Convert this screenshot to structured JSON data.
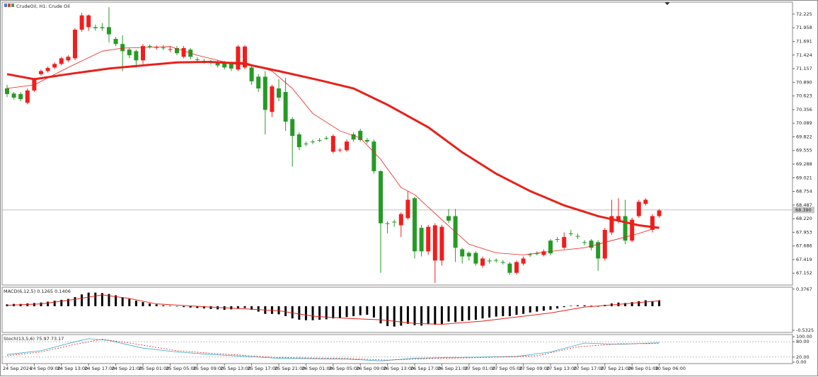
{
  "chart_data": [
    {
      "type": "candlestick",
      "title": "CrudeOil, H1:  Crude Oil",
      "categories": [
        "24 Sep 2024",
        null,
        null,
        null,
        "24 Sep 09:00",
        null,
        null,
        null,
        "24 Sep 13:00",
        null,
        null,
        null,
        "24 Sep 17:00",
        null,
        null,
        null,
        "24 Sep 21:00",
        null,
        null,
        null,
        "25 Sep 01:00",
        null,
        null,
        null,
        "25 Sep 05:00",
        null,
        null,
        null,
        "25 Sep 09:00",
        null,
        null,
        null,
        "25 Sep 13:00",
        null,
        null,
        null,
        "25 Sep 17:00",
        null,
        null,
        null,
        "25 Sep 21:00",
        null,
        null,
        null,
        "26 Sep 01:00",
        null,
        null,
        null,
        "26 Sep 05:00",
        null,
        null,
        null,
        "26 Sep 09:00",
        null,
        null,
        null,
        "26 Sep 13:00",
        null,
        null,
        null,
        "26 Sep 17:00",
        null,
        null,
        null,
        "26 Sep 21:00",
        null,
        null,
        null,
        "27 Sep 01:00",
        null,
        null,
        null,
        "27 Sep 05:00",
        null,
        null,
        null,
        "27 Sep 09:00",
        null,
        null,
        null,
        "27 Sep 13:00",
        null,
        null,
        null,
        "27 Sep 17:00",
        null,
        null,
        null,
        "27 Sep 21:00",
        null,
        null,
        null,
        "28 Sep 01:00",
        null,
        null,
        null,
        "30 Sep 06:00"
      ],
      "open": [
        70.77,
        70.67,
        70.66,
        70.49,
        70.73,
        71.05,
        71.11,
        71.18,
        71.25,
        71.32,
        71.36,
        71.92,
        71.97,
        71.97,
        71.97,
        71.97,
        71.74,
        71.64,
        71.53,
        71.5,
        71.32,
        71.6,
        71.57,
        71.57,
        71.53,
        71.56,
        71.39,
        71.53,
        71.34,
        71.31,
        71.29,
        71.29,
        71.28,
        71.25,
        71.14,
        71.18,
        71.18,
        71.0,
        71.0,
        70.31,
        70.77,
        70.7,
        70.17,
        69.87,
        69.69,
        69.73,
        69.76,
        69.8,
        69.53,
        69.56,
        69.56,
        69.87,
        69.94,
        69.76,
        69.73,
        69.15,
        68.13,
        68.16,
        68.09,
        68.23,
        68.62,
        68.04,
        67.58,
        67.4,
        67.4,
        68.27,
        68.27,
        67.62,
        67.55,
        67.55,
        67.3,
        67.4,
        67.41,
        67.37,
        67.34,
        67.16,
        67.34,
        67.52,
        67.54,
        67.51,
        67.79,
        67.82,
        67.65,
        67.93,
        67.88,
        67.76,
        67.79,
        67.76,
        67.44,
        67.95,
        68.18,
        68.27,
        67.79,
        68.27,
        68.51,
        68.0,
        68.27
      ],
      "high": [
        70.84,
        70.7,
        70.7,
        70.77,
        70.98,
        71.14,
        71.2,
        71.28,
        71.39,
        71.42,
        71.95,
        72.25,
        72.22,
        72.02,
        72.05,
        72.36,
        71.78,
        71.81,
        71.57,
        71.53,
        71.64,
        71.63,
        71.61,
        71.62,
        71.6,
        71.6,
        71.6,
        71.56,
        71.38,
        71.35,
        71.33,
        71.33,
        71.31,
        71.29,
        71.62,
        71.62,
        71.22,
        71.05,
        71.11,
        70.84,
        70.95,
        70.98,
        70.21,
        69.91,
        69.73,
        69.77,
        69.8,
        69.84,
        69.87,
        69.6,
        69.77,
        69.91,
        69.98,
        69.8,
        69.77,
        69.17,
        68.17,
        68.2,
        68.34,
        68.76,
        68.65,
        68.1,
        68.1,
        68.13,
        68.1,
        68.41,
        68.41,
        67.65,
        67.58,
        67.58,
        67.48,
        67.44,
        67.44,
        67.41,
        67.37,
        67.4,
        67.48,
        67.55,
        67.58,
        67.62,
        67.82,
        67.86,
        67.95,
        68.0,
        67.93,
        67.8,
        67.82,
        67.8,
        68.04,
        68.59,
        68.62,
        68.59,
        68.24,
        68.59,
        68.62,
        68.31,
        68.41
      ],
      "low": [
        70.6,
        70.55,
        70.52,
        70.46,
        70.7,
        71.02,
        71.08,
        71.15,
        71.22,
        71.29,
        71.32,
        71.88,
        71.9,
        71.9,
        71.9,
        71.67,
        71.6,
        71.11,
        71.36,
        71.18,
        71.25,
        71.55,
        71.53,
        71.52,
        71.48,
        71.42,
        71.36,
        71.34,
        71.28,
        71.25,
        71.24,
        71.18,
        71.14,
        71.11,
        71.11,
        71.14,
        70.84,
        70.7,
        69.87,
        70.21,
        70.52,
        69.94,
        69.24,
        69.56,
        69.64,
        69.68,
        69.72,
        69.76,
        69.5,
        69.52,
        69.53,
        69.73,
        69.73,
        69.69,
        69.1,
        67.16,
        67.93,
        68.06,
        67.86,
        68.2,
        67.44,
        67.48,
        67.51,
        66.96,
        67.3,
        68.13,
        67.37,
        67.34,
        67.4,
        67.3,
        67.26,
        67.34,
        67.36,
        67.32,
        67.12,
        67.13,
        67.3,
        67.47,
        67.5,
        67.48,
        67.5,
        67.76,
        67.62,
        67.88,
        67.82,
        67.7,
        67.6,
        67.2,
        67.4,
        67.9,
        68.13,
        67.72,
        67.76,
        68.24,
        68.48,
        67.95,
        68.24
      ],
      "close": [
        70.66,
        70.59,
        70.56,
        70.73,
        70.95,
        71.11,
        71.17,
        71.25,
        71.36,
        71.39,
        71.92,
        72.2,
        72.2,
        71.95,
        71.95,
        71.83,
        71.64,
        71.5,
        71.42,
        71.32,
        71.6,
        71.59,
        71.58,
        71.56,
        71.54,
        71.46,
        71.56,
        71.39,
        71.33,
        71.3,
        71.28,
        71.22,
        71.18,
        71.16,
        71.59,
        71.59,
        70.91,
        70.77,
        70.35,
        70.81,
        70.59,
        70.12,
        69.84,
        69.62,
        69.68,
        69.72,
        69.75,
        69.79,
        69.84,
        69.57,
        69.73,
        69.77,
        69.76,
        69.73,
        69.15,
        68.13,
        68.12,
        68.15,
        68.31,
        68.59,
        67.58,
        67.58,
        68.06,
        68.09,
        68.06,
        68.18,
        67.65,
        67.48,
        67.48,
        67.34,
        67.44,
        67.39,
        67.4,
        67.36,
        67.16,
        67.37,
        67.44,
        67.51,
        67.53,
        67.58,
        67.54,
        67.81,
        67.86,
        67.92,
        67.87,
        67.75,
        67.65,
        67.44,
        68.0,
        68.27,
        68.27,
        67.79,
        68.2,
        68.55,
        68.59,
        68.27,
        68.38
      ],
      "up_color": "#f21d1d",
      "down_color": "#259b25",
      "series": [
        {
          "color": "#e8201a",
          "width": 3,
          "x": [
            0,
            4,
            9,
            15,
            20,
            25,
            30,
            35,
            40,
            46,
            51,
            56,
            62,
            67,
            72,
            77,
            82,
            87,
            93,
            96
          ],
          "values": [
            71.05,
            70.95,
            71.05,
            71.16,
            71.22,
            71.28,
            71.29,
            71.25,
            71.11,
            70.93,
            70.77,
            70.45,
            70.01,
            69.52,
            69.1,
            68.76,
            68.48,
            68.27,
            68.09,
            68.04
          ]
        },
        {
          "color": "#e8201a",
          "width": 0.8,
          "x": [
            0,
            4,
            9,
            14,
            17,
            20,
            24,
            28,
            32,
            35,
            39,
            42,
            45,
            49,
            52,
            55,
            58,
            60,
            64,
            68,
            72,
            76,
            80,
            85,
            89,
            93,
            96
          ],
          "values": [
            70.77,
            70.84,
            71.18,
            71.5,
            71.56,
            71.57,
            71.59,
            71.42,
            71.29,
            71.28,
            71.11,
            70.77,
            70.28,
            69.94,
            69.8,
            69.38,
            68.83,
            68.69,
            68.2,
            67.72,
            67.55,
            67.51,
            67.58,
            67.65,
            67.79,
            67.93,
            68.06
          ]
        }
      ],
      "current_price": {
        "value": 68.39,
        "label": "68.390"
      },
      "ylim": [
        66.92,
        72.46
      ],
      "yticks": [
        72.225,
        71.958,
        71.691,
        71.424,
        71.157,
        {
          "value": 70.89,
          "label": "70.890"
        },
        70.623,
        70.356,
        70.089,
        69.822,
        69.555,
        69.288,
        69.021,
        68.754,
        68.487,
        {
          "value": 68.22,
          "label": "68.220"
        },
        67.953,
        67.686,
        67.419,
        67.152
      ]
    },
    {
      "type": "bar",
      "title": "MACD(6,12,5) 0.1265 0.1406",
      "values": [
        0.04,
        0.05,
        0.05,
        0.06,
        0.07,
        0.08,
        0.1,
        0.12,
        0.14,
        0.16,
        0.2,
        0.26,
        0.3,
        0.3,
        0.29,
        0.27,
        0.24,
        0.2,
        0.16,
        0.12,
        0.09,
        0.06,
        0.04,
        0.02,
        0.01,
        -0.01,
        -0.02,
        -0.03,
        -0.04,
        -0.05,
        -0.06,
        -0.07,
        -0.08,
        -0.07,
        -0.05,
        -0.04,
        -0.08,
        -0.12,
        -0.17,
        -0.17,
        -0.18,
        -0.22,
        -0.27,
        -0.3,
        -0.31,
        -0.31,
        -0.3,
        -0.29,
        -0.27,
        -0.26,
        -0.24,
        -0.22,
        -0.2,
        -0.19,
        -0.25,
        -0.38,
        -0.44,
        -0.45,
        -0.43,
        -0.39,
        -0.42,
        -0.43,
        -0.4,
        -0.41,
        -0.39,
        -0.34,
        -0.35,
        -0.33,
        -0.31,
        -0.3,
        -0.27,
        -0.25,
        -0.23,
        -0.22,
        -0.22,
        -0.19,
        -0.17,
        -0.14,
        -0.12,
        -0.1,
        -0.08,
        -0.05,
        -0.02,
        0.01,
        0.02,
        0.02,
        0.01,
        -0.01,
        0.03,
        0.06,
        0.08,
        0.07,
        0.09,
        0.11,
        0.13,
        0.11,
        0.13
      ],
      "color": "#000000",
      "series": [
        {
          "color": "#e8201a",
          "width": 1,
          "x": [
            0,
            5,
            10,
            14,
            18,
            22,
            30,
            40,
            45,
            50,
            55,
            60,
            64,
            70,
            80,
            85,
            90,
            96
          ],
          "values": [
            0.02,
            0.05,
            0.15,
            0.25,
            0.17,
            0.05,
            -0.02,
            -0.1,
            -0.22,
            -0.27,
            -0.3,
            -0.38,
            -0.4,
            -0.33,
            -0.15,
            -0.02,
            0.04,
            0.12
          ]
        }
      ],
      "ylim": [
        -0.58,
        0.42
      ],
      "yticks": [
        0.3767,
        -0.5325
      ]
    },
    {
      "type": "line",
      "title": "Stoch(13,5,6) 75.97 73.17",
      "series": [
        {
          "color": "#3aa8c8",
          "width": 0.8,
          "x": [
            0,
            5,
            10,
            12,
            15,
            20,
            25,
            30,
            40,
            50,
            55,
            60,
            65,
            70,
            75,
            80,
            85,
            90,
            96
          ],
          "values": [
            30,
            45,
            80,
            92,
            85,
            55,
            40,
            30,
            15,
            12,
            5,
            15,
            18,
            20,
            22,
            40,
            75,
            70,
            76
          ]
        },
        {
          "color": "#e8201a",
          "width": 0.8,
          "dash": true,
          "x": [
            0,
            5,
            10,
            14,
            18,
            25,
            30,
            40,
            50,
            56,
            62,
            70,
            78,
            84,
            90,
            96
          ],
          "values": [
            25,
            40,
            70,
            90,
            75,
            45,
            35,
            18,
            14,
            8,
            14,
            18,
            25,
            60,
            72,
            73
          ]
        }
      ],
      "levels": [
        80,
        20
      ],
      "ylim": [
        -5.6,
        108.3
      ],
      "yticks": [
        {
          "value": 100,
          "label": "100.00"
        },
        {
          "value": 80,
          "label": "80.00"
        },
        {
          "value": 20,
          "label": "20.00"
        },
        {
          "value": 0,
          "label": "0.00"
        }
      ]
    }
  ]
}
